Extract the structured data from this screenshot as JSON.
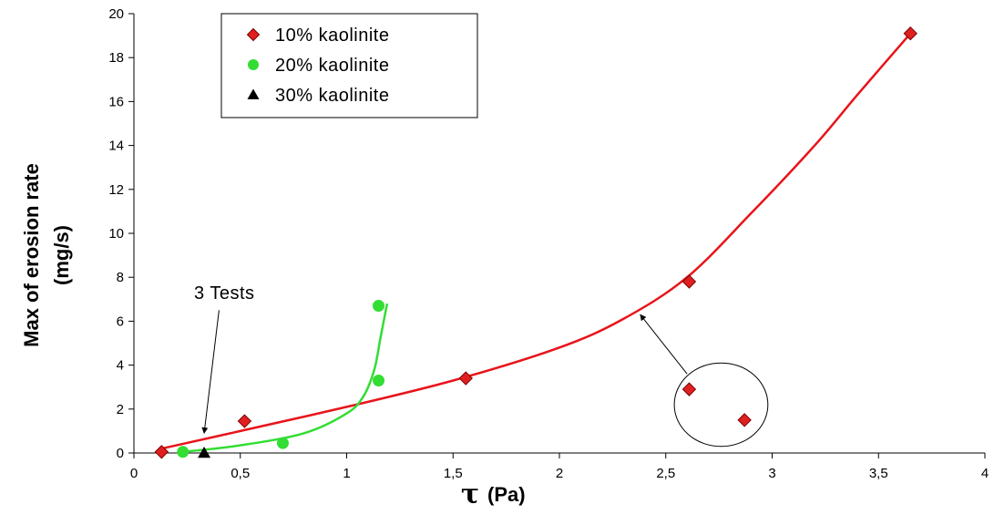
{
  "chart_data": {
    "type": "scatter",
    "title": "",
    "xlabel": "(Pa)",
    "xlabel_symbol": "τ",
    "ylabel_line1": "Max of erosion rate",
    "ylabel_line2": "(mg/s)",
    "xlim": [
      0,
      4
    ],
    "ylim": [
      0,
      20
    ],
    "x_ticks": [
      0,
      0.5,
      1,
      1.5,
      2,
      2.5,
      3,
      3.5,
      4
    ],
    "x_tick_labels": [
      "0",
      "0,5",
      "1",
      "1,5",
      "2",
      "2,5",
      "3",
      "3,5",
      "4"
    ],
    "y_ticks": [
      0,
      2,
      4,
      6,
      8,
      10,
      12,
      14,
      16,
      18,
      20
    ],
    "y_tick_labels": [
      "0",
      "2",
      "4",
      "6",
      "8",
      "10",
      "12",
      "14",
      "16",
      "18",
      "20"
    ],
    "grid": false,
    "legend_position": "top-left",
    "series": [
      {
        "name": "10% kaolinite",
        "marker": "diamond",
        "color": "#e02020",
        "points": [
          [
            0.13,
            0.05
          ],
          [
            0.52,
            1.45
          ],
          [
            1.56,
            3.4
          ],
          [
            2.61,
            7.8
          ],
          [
            2.61,
            2.9
          ],
          [
            2.87,
            1.5
          ],
          [
            3.65,
            19.1
          ]
        ],
        "fit": [
          [
            0.13,
            0.2
          ],
          [
            0.5,
            1.0
          ],
          [
            1.0,
            2.1
          ],
          [
            1.5,
            3.3
          ],
          [
            2.0,
            4.8
          ],
          [
            2.3,
            6.1
          ],
          [
            2.6,
            8.0
          ],
          [
            2.9,
            10.9
          ],
          [
            3.2,
            14.0
          ],
          [
            3.4,
            16.3
          ],
          [
            3.65,
            19.1
          ]
        ]
      },
      {
        "name": "20% kaolinite",
        "marker": "circle",
        "color": "#33dd33",
        "points": [
          [
            0.23,
            0.05
          ],
          [
            0.7,
            0.45
          ],
          [
            1.15,
            6.7
          ],
          [
            1.15,
            3.3
          ]
        ],
        "fit": [
          [
            0.23,
            0.05
          ],
          [
            0.5,
            0.35
          ],
          [
            0.8,
            0.9
          ],
          [
            1.0,
            1.8
          ],
          [
            1.08,
            2.6
          ],
          [
            1.13,
            3.8
          ],
          [
            1.16,
            5.3
          ],
          [
            1.19,
            6.8
          ]
        ]
      },
      {
        "name": "30% kaolinite",
        "marker": "triangle",
        "color": "#000000",
        "points": [
          [
            0.33,
            0.0
          ]
        ]
      }
    ],
    "annotations": [
      {
        "text": "3 Tests",
        "arrow_from": [
          0.4,
          6.5
        ],
        "arrow_to": [
          0.33,
          0.9
        ]
      },
      {
        "circle_center": [
          2.76,
          2.2
        ],
        "circle_radius": [
          0.22,
          1.9
        ],
        "arrow_from": [
          2.6,
          3.6
        ],
        "arrow_to": [
          2.38,
          6.3
        ]
      }
    ]
  }
}
